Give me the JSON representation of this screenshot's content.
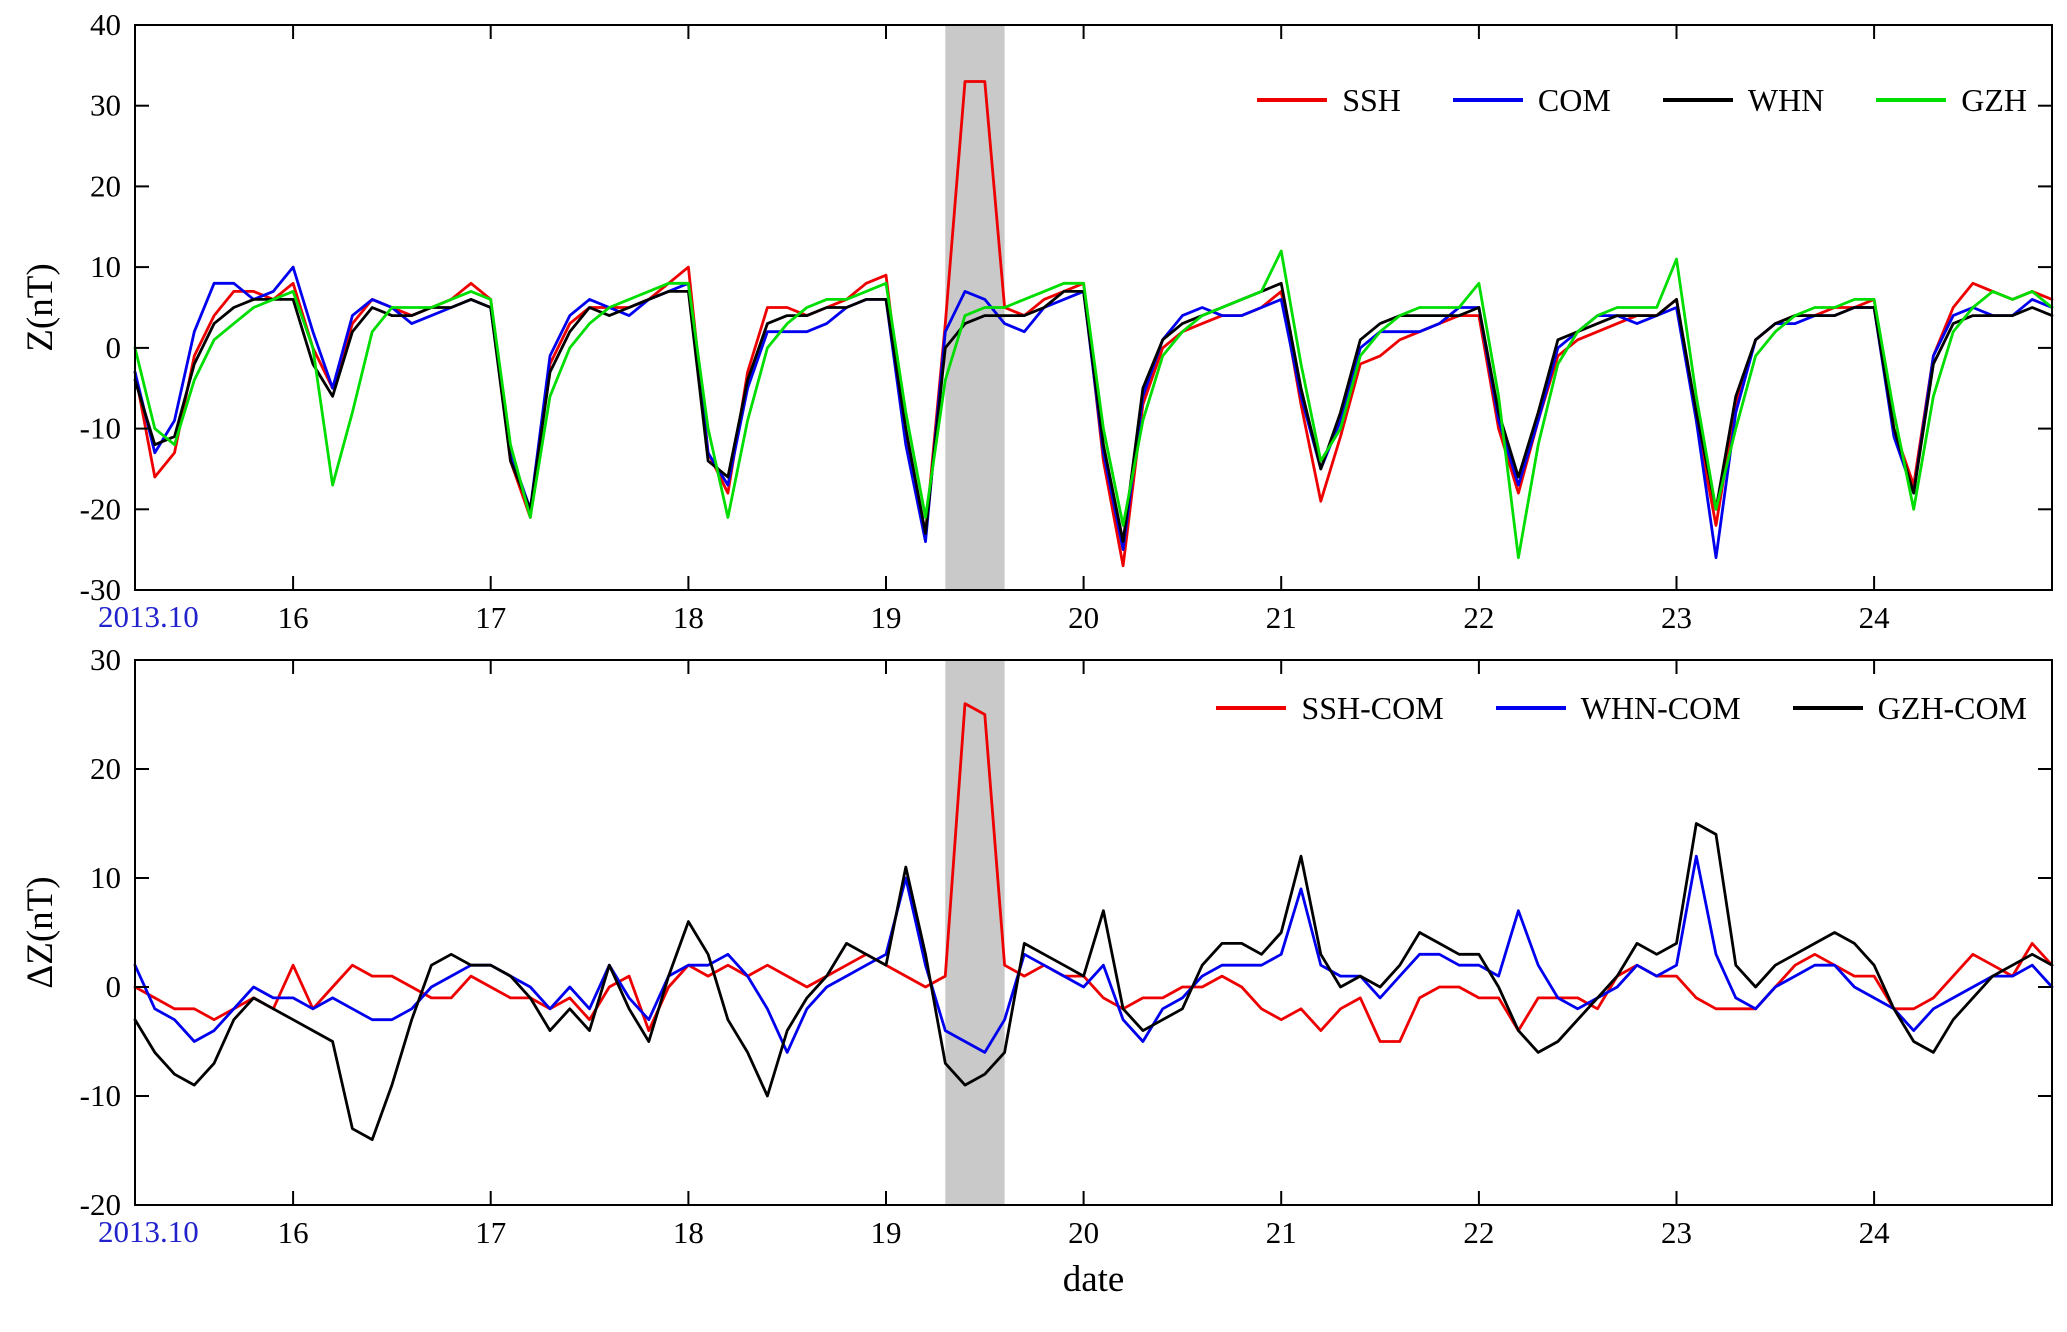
{
  "figure": {
    "period_label": "2013.10",
    "period_label_color": "#2222cc",
    "date_axis_label": "date",
    "band_color": "#c9c9c9"
  },
  "chart_data": [
    {
      "type": "line",
      "ylabel": "Z(nT)",
      "xlabel": "",
      "ylim": [
        -30,
        40
      ],
      "yticks": [
        -30,
        -20,
        -10,
        0,
        10,
        20,
        30,
        40
      ],
      "xlim": [
        15.2,
        24.9
      ],
      "xticks": [
        16,
        17,
        18,
        19,
        20,
        21,
        22,
        23,
        24
      ],
      "grid": false,
      "legend_position": "top-right",
      "shaded_region": [
        19.3,
        19.6
      ],
      "x": [
        15.2,
        15.3,
        15.4,
        15.5,
        15.6,
        15.7,
        15.8,
        15.9,
        16.0,
        16.1,
        16.2,
        16.3,
        16.4,
        16.5,
        16.6,
        16.7,
        16.8,
        16.9,
        17.0,
        17.1,
        17.2,
        17.3,
        17.4,
        17.5,
        17.6,
        17.7,
        17.8,
        17.9,
        18.0,
        18.1,
        18.2,
        18.3,
        18.4,
        18.5,
        18.6,
        18.7,
        18.8,
        18.9,
        19.0,
        19.1,
        19.2,
        19.3,
        19.4,
        19.5,
        19.6,
        19.7,
        19.8,
        19.9,
        20.0,
        20.1,
        20.2,
        20.3,
        20.4,
        20.5,
        20.6,
        20.7,
        20.8,
        20.9,
        21.0,
        21.1,
        21.2,
        21.3,
        21.4,
        21.5,
        21.6,
        21.7,
        21.8,
        21.9,
        22.0,
        22.1,
        22.2,
        22.3,
        22.4,
        22.5,
        22.6,
        22.7,
        22.8,
        22.9,
        23.0,
        23.1,
        23.2,
        23.3,
        23.4,
        23.5,
        23.6,
        23.7,
        23.8,
        23.9,
        24.0,
        24.1,
        24.2,
        24.3,
        24.4,
        24.5,
        24.6,
        24.7,
        24.8,
        24.9
      ],
      "series": [
        {
          "name": "SSH",
          "color": "#ee0000",
          "values": [
            -3,
            -16,
            -13,
            -1,
            4,
            7,
            7,
            6,
            8,
            0,
            -5,
            3,
            6,
            5,
            4,
            5,
            6,
            8,
            6,
            -14,
            -21,
            -2,
            3,
            5,
            5,
            5,
            6,
            8,
            10,
            -13,
            -18,
            -3,
            5,
            5,
            4,
            5,
            6,
            8,
            9,
            -11,
            -23,
            3,
            33,
            33,
            5,
            4,
            6,
            7,
            8,
            -14,
            -27,
            -7,
            0,
            2,
            3,
            4,
            4,
            5,
            7,
            -7,
            -19,
            -11,
            -2,
            -1,
            1,
            2,
            3,
            4,
            4,
            -10,
            -18,
            -9,
            -1,
            1,
            2,
            3,
            4,
            4,
            6,
            -9,
            -22,
            -7,
            1,
            3,
            4,
            4,
            5,
            5,
            6,
            -10,
            -17,
            -1,
            5,
            8,
            7,
            6,
            7,
            6
          ]
        },
        {
          "name": "COM",
          "color": "#0000ee",
          "values": [
            -3,
            -13,
            -9,
            2,
            8,
            8,
            6,
            7,
            10,
            2,
            -5,
            4,
            6,
            5,
            3,
            4,
            5,
            6,
            5,
            -13,
            -20,
            -1,
            4,
            6,
            5,
            4,
            6,
            7,
            8,
            -13,
            -17,
            -5,
            2,
            2,
            2,
            3,
            5,
            6,
            6,
            -12,
            -24,
            2,
            7,
            6,
            3,
            2,
            5,
            6,
            7,
            -13,
            -25,
            -6,
            1,
            4,
            5,
            4,
            4,
            5,
            6,
            -6,
            -15,
            -9,
            0,
            2,
            2,
            2,
            3,
            5,
            5,
            -9,
            -17,
            -9,
            0,
            2,
            4,
            4,
            3,
            4,
            5,
            -9,
            -26,
            -8,
            1,
            3,
            3,
            4,
            4,
            5,
            5,
            -11,
            -18,
            -1,
            4,
            5,
            4,
            4,
            6,
            5
          ]
        },
        {
          "name": "WHN",
          "color": "#000000",
          "values": [
            -4,
            -12,
            -11,
            -2,
            3,
            5,
            6,
            6,
            6,
            -2,
            -6,
            2,
            5,
            4,
            4,
            5,
            5,
            6,
            5,
            -14,
            -20,
            -3,
            2,
            5,
            4,
            5,
            6,
            7,
            7,
            -14,
            -16,
            -4,
            3,
            4,
            4,
            5,
            5,
            6,
            6,
            -10,
            -23,
            0,
            3,
            4,
            4,
            4,
            5,
            7,
            7,
            -12,
            -24,
            -5,
            1,
            3,
            4,
            5,
            6,
            7,
            8,
            -5,
            -15,
            -8,
            1,
            3,
            4,
            4,
            4,
            4,
            5,
            -8,
            -16,
            -8,
            1,
            2,
            3,
            4,
            4,
            4,
            6,
            -8,
            -20,
            -6,
            1,
            3,
            4,
            4,
            4,
            5,
            5,
            -10,
            -18,
            -2,
            3,
            4,
            4,
            4,
            5,
            4
          ]
        },
        {
          "name": "GZH",
          "color": "#00dd00",
          "values": [
            0,
            -10,
            -12,
            -4,
            1,
            3,
            5,
            6,
            7,
            0,
            -17,
            -8,
            2,
            5,
            5,
            5,
            6,
            7,
            6,
            -12,
            -21,
            -6,
            0,
            3,
            5,
            6,
            7,
            8,
            8,
            -10,
            -21,
            -9,
            0,
            3,
            5,
            6,
            6,
            7,
            8,
            -8,
            -21,
            -4,
            4,
            5,
            5,
            6,
            7,
            8,
            8,
            -10,
            -22,
            -9,
            -1,
            2,
            4,
            5,
            6,
            7,
            12,
            -2,
            -14,
            -10,
            -1,
            2,
            4,
            5,
            5,
            5,
            8,
            -6,
            -26,
            -12,
            -2,
            2,
            4,
            5,
            5,
            5,
            11,
            -6,
            -20,
            -10,
            -1,
            2,
            4,
            5,
            5,
            6,
            6,
            -8,
            -20,
            -6,
            2,
            5,
            7,
            6,
            7,
            5
          ]
        }
      ]
    },
    {
      "type": "line",
      "ylabel": "ΔZ(nT)",
      "xlabel": "date",
      "ylim": [
        -20,
        30
      ],
      "yticks": [
        -20,
        -10,
        0,
        10,
        20,
        30
      ],
      "xlim": [
        15.2,
        24.9
      ],
      "xticks": [
        16,
        17,
        18,
        19,
        20,
        21,
        22,
        23,
        24
      ],
      "grid": false,
      "legend_position": "top-right",
      "shaded_region": [
        19.3,
        19.6
      ],
      "x": [
        15.2,
        15.3,
        15.4,
        15.5,
        15.6,
        15.7,
        15.8,
        15.9,
        16.0,
        16.1,
        16.2,
        16.3,
        16.4,
        16.5,
        16.6,
        16.7,
        16.8,
        16.9,
        17.0,
        17.1,
        17.2,
        17.3,
        17.4,
        17.5,
        17.6,
        17.7,
        17.8,
        17.9,
        18.0,
        18.1,
        18.2,
        18.3,
        18.4,
        18.5,
        18.6,
        18.7,
        18.8,
        18.9,
        19.0,
        19.1,
        19.2,
        19.3,
        19.4,
        19.5,
        19.6,
        19.7,
        19.8,
        19.9,
        20.0,
        20.1,
        20.2,
        20.3,
        20.4,
        20.5,
        20.6,
        20.7,
        20.8,
        20.9,
        21.0,
        21.1,
        21.2,
        21.3,
        21.4,
        21.5,
        21.6,
        21.7,
        21.8,
        21.9,
        22.0,
        22.1,
        22.2,
        22.3,
        22.4,
        22.5,
        22.6,
        22.7,
        22.8,
        22.9,
        23.0,
        23.1,
        23.2,
        23.3,
        23.4,
        23.5,
        23.6,
        23.7,
        23.8,
        23.9,
        24.0,
        24.1,
        24.2,
        24.3,
        24.4,
        24.5,
        24.6,
        24.7,
        24.8,
        24.9
      ],
      "series": [
        {
          "name": "SSH-COM",
          "color": "#ee0000",
          "values": [
            0,
            -1,
            -2,
            -2,
            -3,
            -2,
            -1,
            -2,
            2,
            -2,
            0,
            2,
            1,
            1,
            0,
            -1,
            -1,
            1,
            0,
            -1,
            -1,
            -2,
            -1,
            -3,
            0,
            1,
            -4,
            0,
            2,
            1,
            2,
            1,
            2,
            1,
            0,
            1,
            2,
            3,
            2,
            1,
            0,
            1,
            26,
            25,
            2,
            1,
            2,
            1,
            1,
            -1,
            -2,
            -1,
            -1,
            0,
            0,
            1,
            0,
            -2,
            -3,
            -2,
            -4,
            -2,
            -1,
            -5,
            -5,
            -1,
            0,
            0,
            -1,
            -1,
            -4,
            -1,
            -1,
            -1,
            -2,
            1,
            2,
            1,
            1,
            -1,
            -2,
            -2,
            -2,
            0,
            2,
            3,
            2,
            1,
            1,
            -2,
            -2,
            -1,
            1,
            3,
            2,
            1,
            4,
            2
          ]
        },
        {
          "name": "WHN-COM",
          "color": "#0000ee",
          "values": [
            2,
            -2,
            -3,
            -5,
            -4,
            -2,
            0,
            -1,
            -1,
            -2,
            -1,
            -2,
            -3,
            -3,
            -2,
            0,
            1,
            2,
            2,
            1,
            0,
            -2,
            0,
            -2,
            2,
            -1,
            -3,
            1,
            2,
            2,
            3,
            1,
            -2,
            -6,
            -2,
            0,
            1,
            2,
            3,
            10,
            2,
            -4,
            -5,
            -6,
            -3,
            3,
            2,
            1,
            0,
            2,
            -3,
            -5,
            -2,
            -1,
            1,
            2,
            2,
            2,
            3,
            9,
            2,
            1,
            1,
            -1,
            1,
            3,
            3,
            2,
            2,
            1,
            7,
            2,
            -1,
            -2,
            -1,
            0,
            2,
            1,
            2,
            12,
            3,
            -1,
            -2,
            0,
            1,
            2,
            2,
            0,
            -1,
            -2,
            -4,
            -2,
            -1,
            0,
            1,
            1,
            2,
            0
          ]
        },
        {
          "name": "GZH-COM",
          "color": "#000000",
          "values": [
            -3,
            -6,
            -8,
            -9,
            -7,
            -3,
            -1,
            -2,
            -3,
            -4,
            -5,
            -13,
            -14,
            -9,
            -3,
            2,
            3,
            2,
            2,
            1,
            -1,
            -4,
            -2,
            -4,
            2,
            -2,
            -5,
            1,
            6,
            3,
            -3,
            -6,
            -10,
            -4,
            -1,
            1,
            4,
            3,
            2,
            11,
            3,
            -7,
            -9,
            -8,
            -6,
            4,
            3,
            2,
            1,
            7,
            -2,
            -4,
            -3,
            -2,
            2,
            4,
            4,
            3,
            5,
            12,
            3,
            0,
            1,
            0,
            2,
            5,
            4,
            3,
            3,
            0,
            -4,
            -6,
            -5,
            -3,
            -1,
            1,
            4,
            3,
            4,
            15,
            14,
            2,
            0,
            2,
            3,
            4,
            5,
            4,
            2,
            -2,
            -5,
            -6,
            -3,
            -1,
            1,
            2,
            3,
            2
          ]
        }
      ]
    }
  ]
}
